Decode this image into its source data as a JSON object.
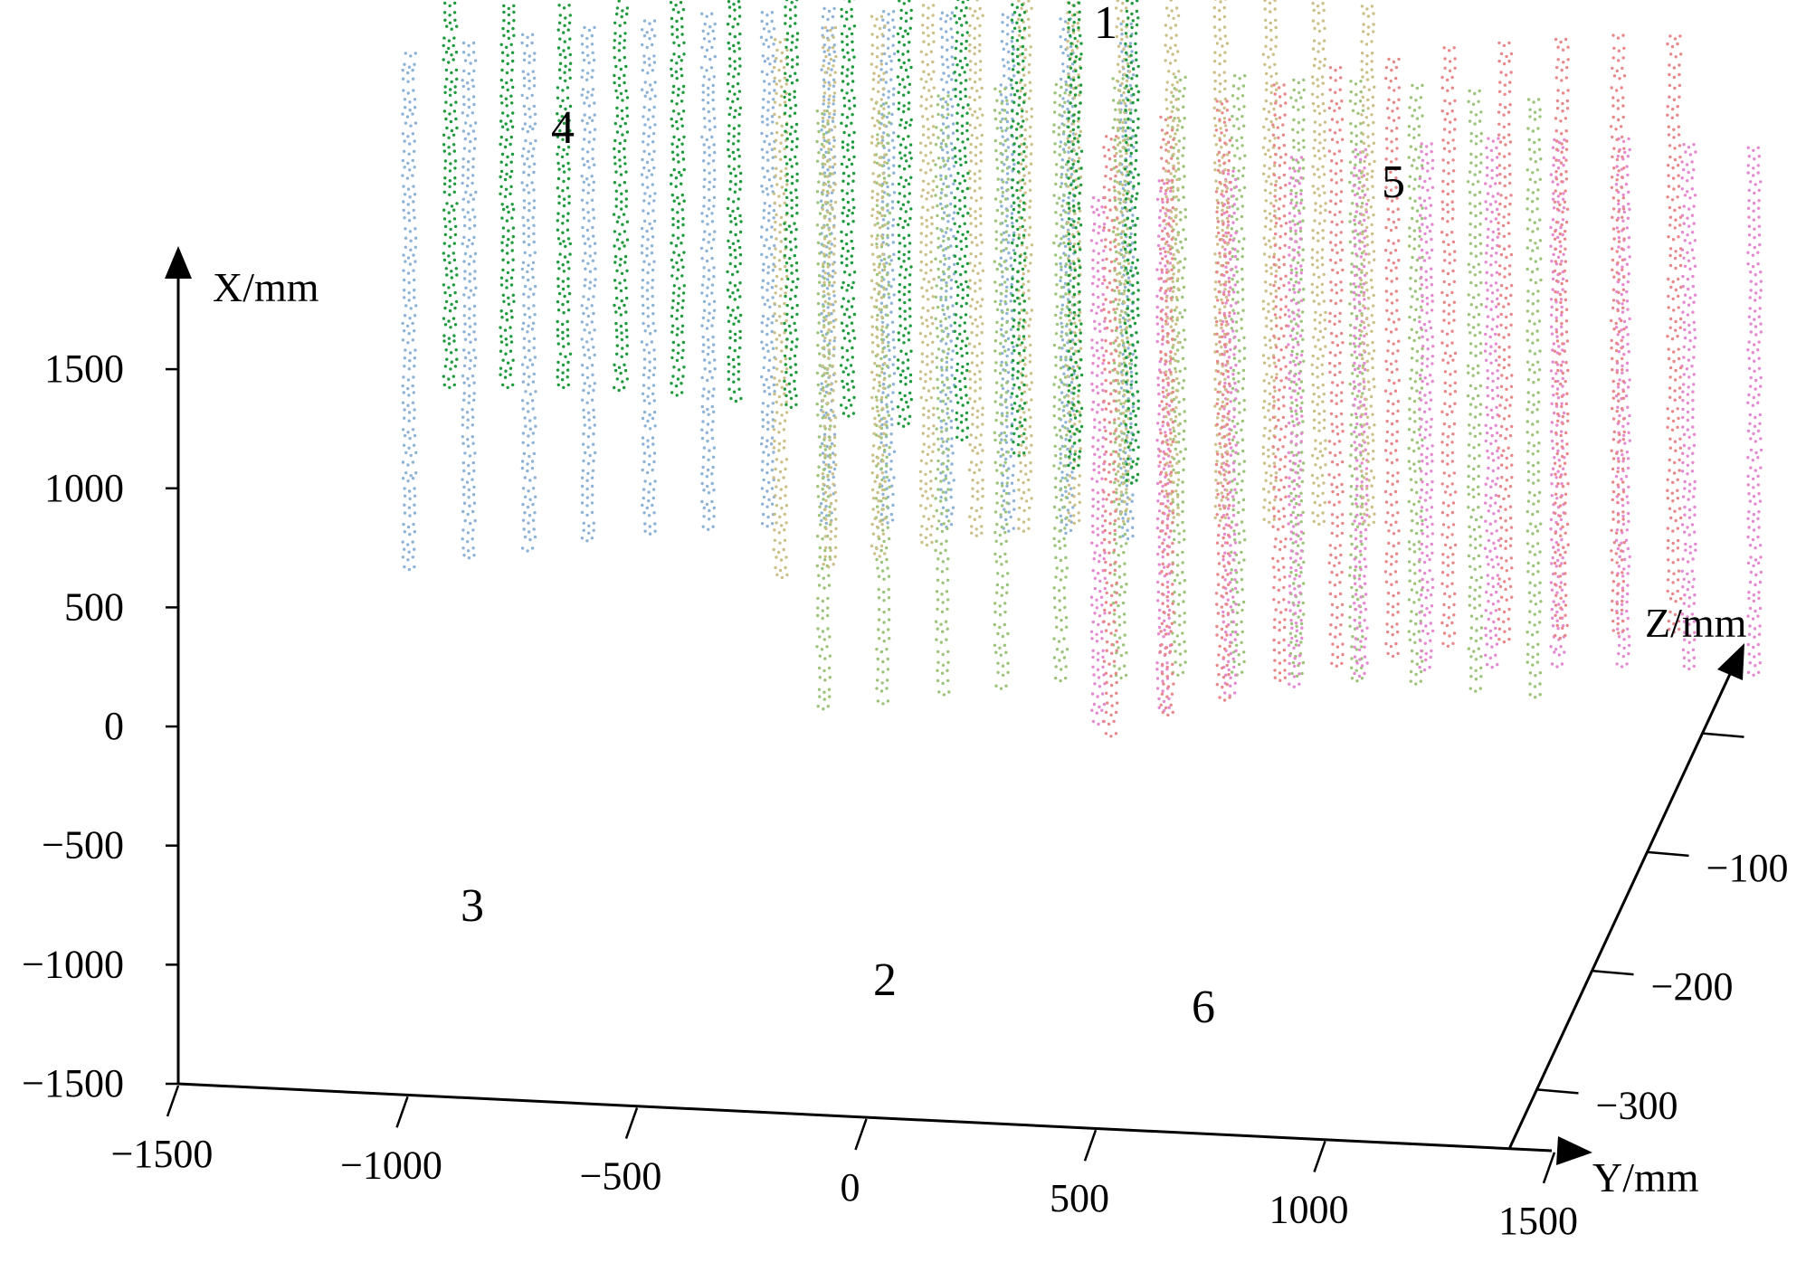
{
  "chart_data": {
    "type": "scatter",
    "projection": "3d",
    "axes": {
      "x": {
        "label": "X/mm",
        "range": [
          -1500,
          1500
        ],
        "ticks": [
          -1500,
          -1000,
          -500,
          0,
          500,
          1000,
          1500
        ],
        "tick_labels": [
          "−1500",
          "−1000",
          "−500",
          "0",
          "500",
          "1000",
          "1500"
        ],
        "orientation": "vertical"
      },
      "y": {
        "label": "Y/mm",
        "range": [
          -1500,
          1500
        ],
        "ticks": [
          -1500,
          -1000,
          -500,
          0,
          500,
          1000,
          1500
        ],
        "tick_labels": [
          "−1500",
          "−1000",
          "−500",
          "0",
          "500",
          "1000",
          "1500"
        ],
        "orientation": "horizontal"
      },
      "z": {
        "label": "Z/mm",
        "range": [
          -350,
          50
        ],
        "ticks": [
          0,
          -100,
          -200,
          -300
        ],
        "tick_labels": [
          "0",
          "−100",
          "−200",
          "−300"
        ],
        "orientation": "depth"
      }
    },
    "grid": false,
    "legend": "none",
    "series": [
      {
        "label": "4",
        "color": "#8fb3d6",
        "y_range": [
          -1200,
          300
        ],
        "x_range": [
          -100,
          2050
        ],
        "z_range": [
          -120,
          -160
        ],
        "columns": 13,
        "points_per_column": 60
      },
      {
        "label": "1",
        "color": "#9cc47a",
        "y_range": [
          -200,
          1300
        ],
        "x_range": [
          -200,
          2300
        ],
        "z_range": [
          -60,
          -90
        ],
        "columns": 13,
        "points_per_column": 60
      },
      {
        "label": "5",
        "color": "#e58ad0",
        "y_range": [
          350,
          1700
        ],
        "x_range": [
          -400,
          1800
        ],
        "z_range": [
          -90,
          -140
        ],
        "columns": 11,
        "points_per_column": 60
      },
      {
        "label": "2",
        "color": "#ccc088",
        "y_range": [
          -600,
          600
        ],
        "x_range": [
          -950,
          1300
        ],
        "z_range": [
          -250,
          -300
        ],
        "columns": 13,
        "points_per_column": 60
      },
      {
        "label": "6",
        "color": "#e8888a",
        "y_range": [
          200,
          1300
        ],
        "x_range": [
          -1200,
          1300
        ],
        "z_range": [
          -200,
          -280
        ],
        "columns": 11,
        "points_per_column": 60
      },
      {
        "label": "3",
        "color": "#1f9a3c",
        "y_range": [
          -1400,
          150
        ],
        "x_range": [
          -550,
          1500
        ],
        "z_range": [
          -300,
          -260
        ],
        "columns": 13,
        "points_per_column": 60
      }
    ]
  }
}
